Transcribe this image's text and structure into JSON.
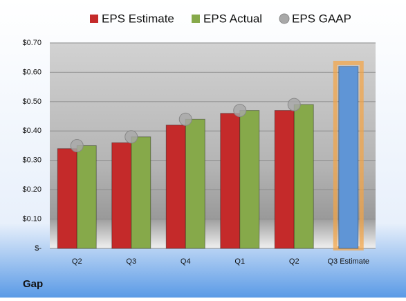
{
  "chart_data": {
    "type": "bar",
    "title": "Gap",
    "categories": [
      "Q2",
      "Q3",
      "Q4",
      "Q1",
      "Q2",
      "Q3 Estimate"
    ],
    "series": [
      {
        "name": "EPS Estimate",
        "color": "#c42a2a",
        "highlight_color": "#5f95d6",
        "values": [
          0.34,
          0.36,
          0.42,
          0.46,
          0.47,
          0.62
        ]
      },
      {
        "name": "EPS Actual",
        "color": "#86a94a",
        "values": [
          0.35,
          0.38,
          0.44,
          0.47,
          0.49,
          null
        ]
      },
      {
        "name": "EPS GAAP",
        "color": "#a8a8a8",
        "values": [
          0.35,
          0.38,
          0.44,
          0.47,
          0.49,
          null
        ]
      }
    ],
    "ylim": [
      0,
      0.7
    ],
    "yticks": [
      {
        "value": 0,
        "label": "$-"
      },
      {
        "value": 0.1,
        "label": "$0.10"
      },
      {
        "value": 0.2,
        "label": "$0.20"
      },
      {
        "value": 0.3,
        "label": "$0.30"
      },
      {
        "value": 0.4,
        "label": "$0.40"
      },
      {
        "value": 0.5,
        "label": "$0.50"
      },
      {
        "value": 0.6,
        "label": "$0.60"
      },
      {
        "value": 0.7,
        "label": "$0.70"
      }
    ],
    "grid": true,
    "legend": "top"
  }
}
